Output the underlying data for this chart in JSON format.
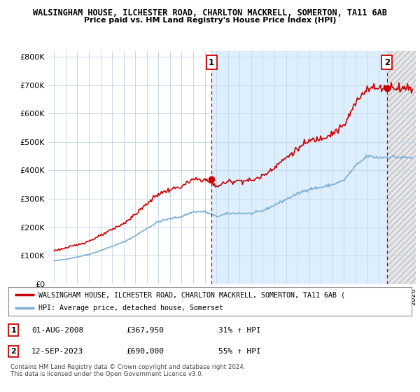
{
  "title": "WALSINGHAM HOUSE, ILCHESTER ROAD, CHARLTON MACKRELL, SOMERTON, TA11 6AB",
  "subtitle": "Price paid vs. HM Land Registry's House Price Index (HPI)",
  "ylabel_ticks": [
    "£0",
    "£100K",
    "£200K",
    "£300K",
    "£400K",
    "£500K",
    "£600K",
    "£700K",
    "£800K"
  ],
  "ytick_values": [
    0,
    100000,
    200000,
    300000,
    400000,
    500000,
    600000,
    700000,
    800000
  ],
  "ylim": [
    0,
    820000
  ],
  "legend_house": "WALSINGHAM HOUSE, ILCHESTER ROAD, CHARLTON MACKRELL, SOMERTON, TA11 6AB (",
  "legend_hpi": "HPI: Average price, detached house, Somerset",
  "transaction1_date": "01-AUG-2008",
  "transaction1_price": "£367,950",
  "transaction1_hpi": "31% ↑ HPI",
  "transaction2_date": "12-SEP-2023",
  "transaction2_price": "£690,000",
  "transaction2_hpi": "55% ↑ HPI",
  "footnote1": "Contains HM Land Registry data © Crown copyright and database right 2024.",
  "footnote2": "This data is licensed under the Open Government Licence v3.0.",
  "line_color_house": "#cc0000",
  "line_color_hpi": "#7aaed6",
  "dot_color": "#cc0000",
  "vline_color": "#cc0000",
  "background_color": "#ffffff",
  "grid_color": "#c8d8e8",
  "shade_color": "#ddeeff",
  "transaction1_x": 2008.58,
  "transaction1_y": 367950,
  "transaction2_x": 2023.71,
  "transaction2_y": 690000,
  "xlim_start": 1994.5,
  "xlim_end": 2026.2
}
